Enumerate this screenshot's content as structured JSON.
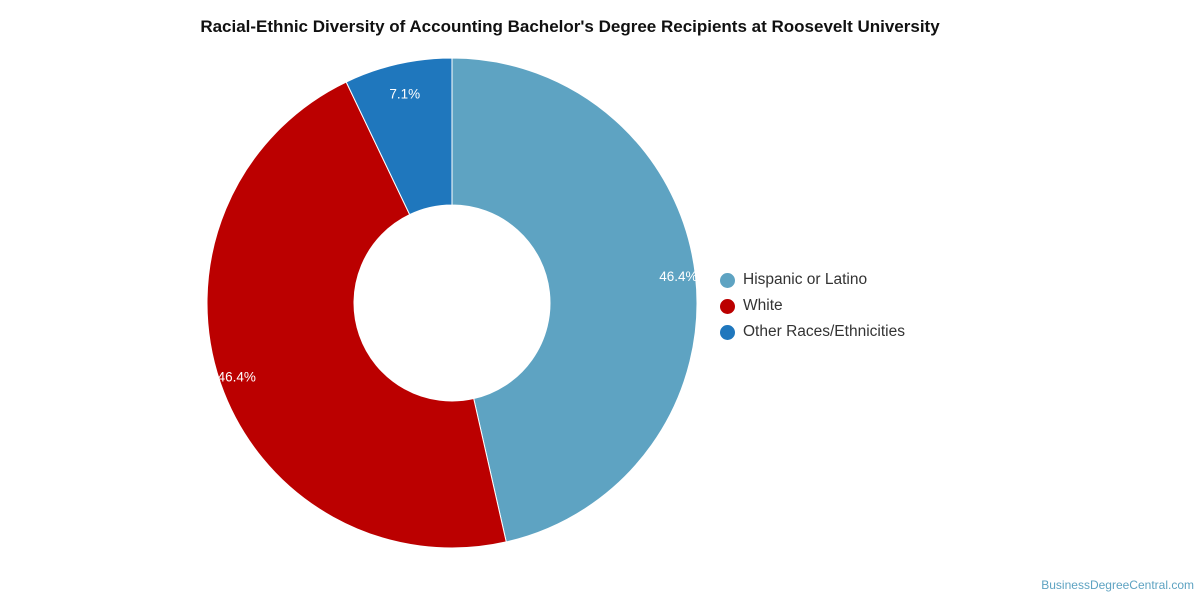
{
  "chart_data": {
    "type": "pie",
    "title": "Racial-Ethnic Diversity of Accounting Bachelor's Degree Recipients at Roosevelt University",
    "donut": true,
    "legend_position": "right",
    "slices": [
      {
        "label": "Hispanic or Latino",
        "value": 46.4,
        "value_label": "46.4%",
        "color": "#5ea3c2"
      },
      {
        "label": "White",
        "value": 46.4,
        "value_label": "46.4%",
        "color": "#bb0000"
      },
      {
        "label": "Other Races/Ethnicities",
        "value": 7.1,
        "value_label": "7.1%",
        "color": "#1f77bd"
      }
    ]
  },
  "credit": "BusinessDegreeCentral.com"
}
